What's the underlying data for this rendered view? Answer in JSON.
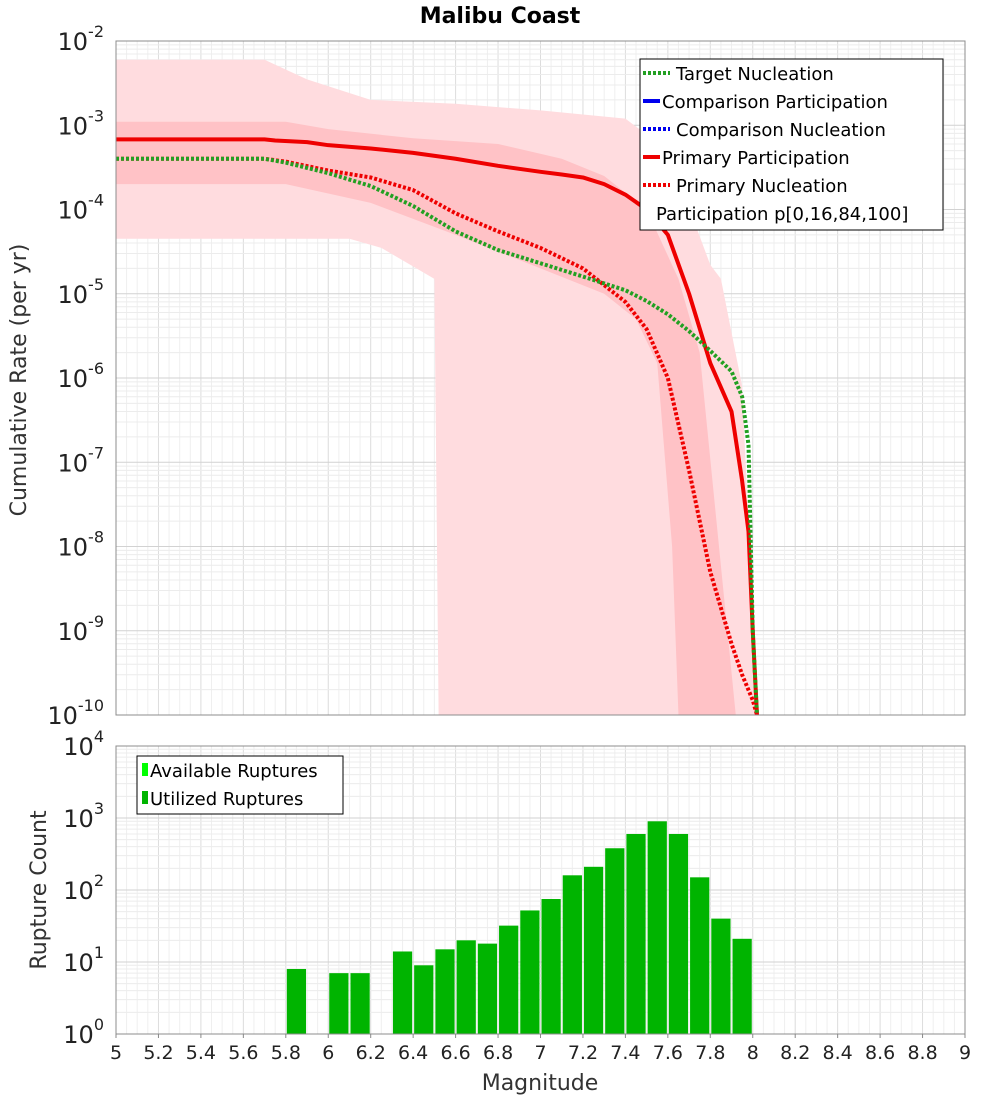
{
  "chart_data": [
    {
      "type": "line",
      "title": "Malibu Coast",
      "xlabel": "",
      "ylabel": "Cumulative Rate (per yr)",
      "xlim": [
        5,
        9
      ],
      "ylim": [
        1e-10,
        0.01
      ],
      "yscale": "log",
      "grid": true,
      "y_ticks": [
        {
          "exp": "-2"
        },
        {
          "exp": "-3"
        },
        {
          "exp": "-4"
        },
        {
          "exp": "-5"
        },
        {
          "exp": "-6"
        },
        {
          "exp": "-7"
        },
        {
          "exp": "-8"
        },
        {
          "exp": "-9"
        },
        {
          "exp": "-10"
        }
      ],
      "y_tick_base": "10",
      "legend_position": "top-right",
      "legend": [
        {
          "label": "Target Nucleation",
          "color": "#22a022",
          "style": "dotted"
        },
        {
          "label": "Comparison Participation",
          "color": "#0000ee",
          "style": "solid"
        },
        {
          "label": "Comparison Nucleation",
          "color": "#0000ee",
          "style": "dotted"
        },
        {
          "label": "Primary Participation",
          "color": "#ee0000",
          "style": "solid"
        },
        {
          "label": "Primary Nucleation",
          "color": "#ee0000",
          "style": "dotted"
        },
        {
          "label": "Participation p[0,16,84,100]",
          "color": "",
          "style": "none"
        }
      ],
      "bands": [
        {
          "name": "p0-p100",
          "color": "#ffdcdf",
          "upper": [
            [
              5.0,
              0.006
            ],
            [
              5.7,
              0.006
            ],
            [
              5.9,
              0.0035
            ],
            [
              6.2,
              0.002
            ],
            [
              6.6,
              0.0018
            ],
            [
              7.0,
              0.0015
            ],
            [
              7.4,
              0.0012
            ],
            [
              7.6,
              0.0005
            ],
            [
              7.8,
              2.2e-05
            ],
            [
              7.85,
              1.5e-05
            ],
            [
              7.95,
              8e-07
            ],
            [
              8.02,
              1e-10
            ]
          ],
          "lower": [
            [
              5.0,
              4.5e-05
            ],
            [
              5.7,
              4.5e-05
            ],
            [
              6.1,
              4.5e-05
            ],
            [
              6.25,
              3.5e-05
            ],
            [
              6.35,
              2.5e-05
            ],
            [
              6.5,
              1.5e-05
            ],
            [
              6.52,
              1e-10
            ]
          ]
        },
        {
          "name": "p16-p84",
          "color": "#ffc2c6",
          "upper": [
            [
              5.0,
              0.0011
            ],
            [
              5.8,
              0.0011
            ],
            [
              6.0,
              0.0009
            ],
            [
              6.4,
              0.0007
            ],
            [
              6.8,
              0.0006
            ],
            [
              7.1,
              0.0004
            ],
            [
              7.3,
              0.00025
            ],
            [
              7.5,
              0.0001
            ],
            [
              7.65,
              1.5e-05
            ],
            [
              7.75,
              2e-06
            ],
            [
              7.92,
              1e-10
            ]
          ],
          "lower": [
            [
              5.0,
              0.0002
            ],
            [
              5.8,
              0.0002
            ],
            [
              6.2,
              0.00012
            ],
            [
              6.6,
              5e-05
            ],
            [
              7.0,
              2e-05
            ],
            [
              7.3,
              1e-05
            ],
            [
              7.45,
              5e-06
            ],
            [
              7.55,
              1.5e-06
            ],
            [
              7.62,
              1e-08
            ],
            [
              7.65,
              1e-10
            ]
          ]
        }
      ],
      "series": [
        {
          "name": "Primary Participation",
          "color": "#ee0000",
          "style": "solid",
          "x": [
            5.0,
            5.3,
            5.5,
            5.7,
            5.75,
            5.9,
            6.0,
            6.2,
            6.4,
            6.6,
            6.8,
            7.0,
            7.1,
            7.2,
            7.3,
            7.4,
            7.5,
            7.6,
            7.7,
            7.8,
            7.9,
            7.95,
            7.98,
            8.0,
            8.02
          ],
          "y": [
            0.00068,
            0.00068,
            0.00068,
            0.00068,
            0.00066,
            0.00063,
            0.00058,
            0.00053,
            0.00047,
            0.0004,
            0.00033,
            0.00028,
            0.00026,
            0.00024,
            0.0002,
            0.00015,
            0.0001,
            5e-05,
            1e-05,
            1.5e-06,
            4e-07,
            6e-08,
            1.5e-08,
            1e-09,
            1e-10
          ]
        },
        {
          "name": "Primary Nucleation",
          "color": "#ee0000",
          "style": "dotted",
          "x": [
            5.0,
            5.3,
            5.5,
            5.7,
            5.8,
            6.0,
            6.2,
            6.4,
            6.6,
            6.8,
            7.0,
            7.2,
            7.4,
            7.5,
            7.6,
            7.7,
            7.8,
            7.9,
            7.95,
            8.0,
            8.02
          ],
          "y": [
            0.0004,
            0.0004,
            0.0004,
            0.0004,
            0.00037,
            0.00029,
            0.00024,
            0.00017,
            9e-05,
            5.5e-05,
            3.5e-05,
            2e-05,
            8e-06,
            3.8e-06,
            1e-06,
            8e-08,
            5e-09,
            7e-10,
            3e-10,
            1.5e-10,
            1e-10
          ]
        },
        {
          "name": "Target Nucleation",
          "color": "#22a022",
          "style": "dotted",
          "x": [
            5.0,
            5.5,
            5.7,
            5.8,
            6.0,
            6.2,
            6.4,
            6.6,
            6.8,
            7.0,
            7.2,
            7.4,
            7.5,
            7.6,
            7.7,
            7.8,
            7.9,
            7.95,
            7.98,
            8.0,
            8.02
          ],
          "y": [
            0.0004,
            0.0004,
            0.0004,
            0.00036,
            0.00027,
            0.00019,
            0.00011,
            5.5e-05,
            3.3e-05,
            2.3e-05,
            1.6e-05,
            1.1e-05,
            8.2e-06,
            5.7e-06,
            3.6e-06,
            2.1e-06,
            1.2e-06,
            6e-07,
            1.6e-07,
            1e-09,
            1e-10
          ]
        }
      ]
    },
    {
      "type": "bar",
      "title": "",
      "xlabel": "Magnitude",
      "ylabel": "Rupture Count",
      "xlim": [
        5,
        9
      ],
      "ylim": [
        1,
        10000
      ],
      "yscale": "log",
      "grid": true,
      "y_ticks": [
        {
          "exp": "4"
        },
        {
          "exp": "3"
        },
        {
          "exp": "2"
        },
        {
          "exp": "1"
        },
        {
          "exp": "0"
        }
      ],
      "y_tick_base": "10",
      "x_ticks": [
        "5",
        "5.2",
        "5.4",
        "5.6",
        "5.8",
        "6",
        "6.2",
        "6.4",
        "6.6",
        "6.8",
        "7",
        "7.2",
        "7.4",
        "7.6",
        "7.8",
        "8",
        "8.2",
        "8.4",
        "8.6",
        "8.8",
        "9"
      ],
      "legend_position": "top-left",
      "legend": [
        {
          "label": "Available Ruptures",
          "color": "#00ff00"
        },
        {
          "label": "Utilized Ruptures",
          "color": "#00b400"
        }
      ],
      "bin_width": 0.1,
      "bar_color": "#00b400",
      "bins": [
        5.85,
        6.05,
        6.15,
        6.35,
        6.45,
        6.55,
        6.65,
        6.75,
        6.85,
        6.95,
        7.05,
        7.15,
        7.25,
        7.35,
        7.45,
        7.55,
        7.65,
        7.75,
        7.85,
        7.95
      ],
      "values": [
        8,
        7,
        7,
        14,
        9,
        15,
        20,
        18,
        32,
        52,
        75,
        160,
        210,
        380,
        600,
        900,
        600,
        150,
        40,
        21
      ]
    }
  ]
}
